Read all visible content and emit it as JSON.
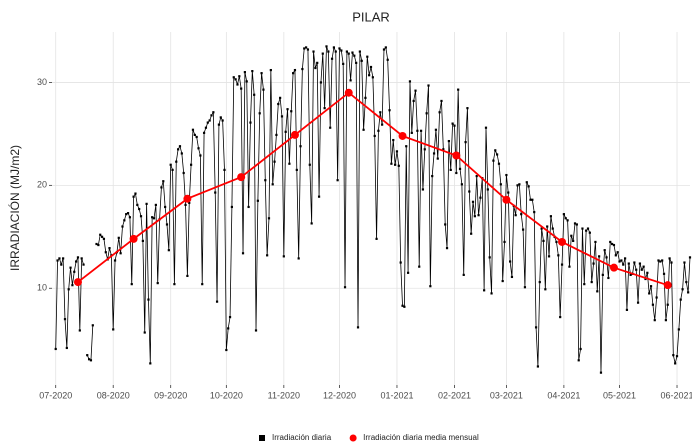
{
  "chart_data": {
    "type": "line",
    "title": "PILAR",
    "y_label": "IRRADIACIÓN (MJ/m2)",
    "xlim": [
      -2,
      342
    ],
    "ylim": [
      0.6,
      34.9
    ],
    "xticks": [
      {
        "value": 0,
        "label": "07-2020"
      },
      {
        "value": 31,
        "label": "08-2020"
      },
      {
        "value": 62,
        "label": "09-2020"
      },
      {
        "value": 92,
        "label": "10-2020"
      },
      {
        "value": 123,
        "label": "11-2020"
      },
      {
        "value": 153,
        "label": "12-2020"
      },
      {
        "value": 184,
        "label": "01-2021"
      },
      {
        "value": 215,
        "label": "02-2021"
      },
      {
        "value": 243,
        "label": "03-2021"
      },
      {
        "value": 274,
        "label": "04-2021"
      },
      {
        "value": 304,
        "label": "05-2021"
      },
      {
        "value": 335,
        "label": "06-2021"
      }
    ],
    "yticks": [
      10,
      20,
      30
    ],
    "grid": true,
    "legend": "bottom",
    "series": [
      {
        "name": "Irradiación diaria",
        "color": "#000000",
        "marker": "square",
        "x": [
          0,
          1,
          2,
          3,
          4,
          5,
          6,
          7,
          8,
          9,
          10,
          11,
          12,
          13,
          14,
          15,
          16,
          17,
          18,
          19,
          20,
          21,
          22,
          23,
          24,
          25,
          26,
          27,
          28,
          29,
          30,
          31,
          32,
          33,
          34,
          35,
          36,
          37,
          38,
          39,
          40,
          41,
          42,
          43,
          44,
          45,
          46,
          47,
          48,
          49,
          50,
          51,
          52,
          53,
          54,
          55,
          56,
          57,
          58,
          59,
          60,
          61,
          62,
          63,
          64,
          65,
          66,
          67,
          68,
          69,
          70,
          71,
          72,
          73,
          74,
          75,
          76,
          77,
          78,
          79,
          80,
          81,
          82,
          83,
          84,
          85,
          86,
          87,
          88,
          89,
          90,
          91,
          92,
          93,
          94,
          95,
          96,
          97,
          98,
          99,
          100,
          101,
          102,
          103,
          104,
          105,
          106,
          107,
          108,
          109,
          110,
          111,
          112,
          113,
          114,
          115,
          116,
          117,
          118,
          119,
          120,
          121,
          122,
          123,
          124,
          125,
          126,
          127,
          128,
          129,
          130,
          131,
          132,
          133,
          134,
          135,
          136,
          137,
          138,
          139,
          140,
          141,
          142,
          143,
          144,
          145,
          146,
          147,
          148,
          149,
          150,
          151,
          152,
          153,
          154,
          155,
          156,
          157,
          158,
          159,
          160,
          161,
          162,
          163,
          164,
          165,
          166,
          167,
          168,
          169,
          170,
          171,
          172,
          173,
          174,
          175,
          176,
          177,
          178,
          179,
          180,
          181,
          182,
          183,
          184,
          185,
          186,
          187,
          188,
          189,
          190,
          191,
          192,
          193,
          194,
          195,
          196,
          197,
          198,
          199,
          200,
          201,
          202,
          203,
          204,
          205,
          206,
          207,
          208,
          209,
          210,
          211,
          212,
          213,
          214,
          215,
          216,
          217,
          218,
          219,
          220,
          221,
          222,
          223,
          224,
          225,
          226,
          227,
          228,
          229,
          230,
          231,
          232,
          233,
          234,
          235,
          236,
          237,
          238,
          239,
          240,
          241,
          242,
          243,
          244,
          245,
          246,
          247,
          248,
          249,
          250,
          251,
          252,
          253,
          254,
          255,
          256,
          257,
          258,
          259,
          260,
          261,
          262,
          263,
          264,
          265,
          266,
          267,
          268,
          269,
          270,
          271,
          272,
          273,
          274,
          275,
          276,
          277,
          278,
          279,
          280,
          281,
          282,
          283,
          284,
          285,
          286,
          287,
          288,
          289,
          290,
          291,
          292,
          293,
          294,
          295,
          296,
          297,
          298,
          299,
          300,
          301,
          302,
          303,
          304,
          305,
          306,
          307,
          308,
          309,
          310,
          311,
          312,
          313,
          314,
          315,
          316,
          317,
          318,
          319,
          320,
          321,
          322,
          323,
          324,
          325,
          326,
          327,
          328,
          329,
          330,
          331,
          332,
          333,
          334,
          335,
          336,
          337,
          338,
          339,
          340,
          341,
          342
        ],
        "values": [
          4.1,
          12.7,
          12.9,
          12.3,
          12.9,
          7.0,
          4.2,
          9.9,
          12.0,
          10.3,
          11.6,
          12.6,
          13.0,
          5.9,
          12.9,
          12.3,
          null,
          3.5,
          3.1,
          3.0,
          6.4,
          null,
          14.3,
          14.2,
          15.2,
          15.0,
          14.8,
          13.5,
          12.8,
          13.9,
          13.2,
          6.0,
          12.7,
          13.5,
          14.9,
          13.4,
          16.0,
          16.6,
          17.2,
          17.3,
          16.9,
          10.4,
          18.9,
          19.2,
          18.1,
          17.7,
          17.0,
          14.6,
          5.7,
          18.2,
          8.9,
          2.7,
          16.9,
          16.8,
          18.1,
          10.5,
          16.7,
          19.8,
          20.4,
          17.9,
          16.2,
          13.7,
          22.0,
          21.5,
          10.4,
          22.3,
          23.5,
          23.8,
          23.1,
          21.2,
          18.1,
          11.2,
          18.3,
          22.0,
          25.4,
          24.9,
          24.7,
          23.6,
          22.9,
          10.4,
          25.1,
          25.6,
          26.1,
          26.3,
          26.8,
          27.1,
          19.3,
          8.7,
          25.9,
          26.6,
          26.3,
          21.5,
          4.0,
          6.1,
          7.2,
          17.9,
          30.5,
          30.3,
          29.8,
          30.6,
          29.4,
          13.4,
          31.0,
          30.1,
          17.9,
          26.1,
          31.1,
          28.8,
          5.9,
          18.5,
          27.0,
          30.9,
          29.3,
          20.5,
          13.2,
          16.8,
          31.2,
          20.1,
          22.3,
          24.9,
          27.9,
          28.5,
          26.7,
          13.1,
          25.2,
          27.4,
          22.1,
          27.2,
          30.9,
          31.2,
          21.5,
          12.9,
          23.8,
          31.3,
          33.3,
          33.4,
          33.2,
          22.0,
          16.3,
          33.0,
          31.4,
          31.9,
          18.9,
          30.0,
          32.8,
          27.5,
          33.5,
          33.0,
          25.6,
          32.3,
          33.4,
          33.0,
          20.5,
          33.3,
          33.1,
          31.8,
          10.1,
          33.0,
          32.8,
          30.2,
          32.9,
          32.6,
          31.9,
          6.2,
          33.0,
          32.1,
          25.4,
          28.5,
          32.5,
          30.7,
          31.5,
          30.5,
          24.8,
          14.8,
          25.3,
          27.1,
          25.9,
          33.2,
          33.4,
          32.2,
          27.3,
          22.1,
          24.4,
          22.0,
          23.3,
          21.9,
          12.5,
          8.3,
          8.2,
          23.8,
          11.5,
          30.1,
          25.1,
          28.2,
          29.2,
          25.3,
          12.1,
          25.3,
          19.6,
          23.5,
          27.0,
          29.7,
          10.2,
          20.9,
          23.1,
          25.4,
          22.6,
          27.1,
          28.2,
          23.5,
          16.2,
          13.9,
          24.3,
          21.5,
          26.0,
          25.8,
          21.2,
          29.3,
          21.6,
          20.1,
          11.3,
          24.2,
          27.5,
          19.4,
          15.3,
          18.4,
          17.0,
          20.9,
          17.1,
          18.8,
          20.7,
          9.8,
          25.6,
          19.6,
          13.0,
          9.5,
          22.4,
          23.4,
          23.0,
          22.1,
          20.1,
          10.7,
          14.5,
          21.0,
          19.3,
          12.6,
          11.1,
          18.0,
          17.1,
          20.0,
          20.1,
          17.2,
          15.7,
          10.1,
          20.3,
          19.9,
          18.6,
          18.6,
          17.4,
          6.2,
          2.4,
          10.6,
          15.8,
          14.6,
          9.9,
          16.0,
          13.1,
          17.0,
          15.8,
          15.0,
          14.5,
          13.2,
          7.2,
          12.3,
          17.2,
          16.8,
          16.6,
          12.1,
          15.1,
          14.6,
          16.3,
          16.2,
          3.0,
          4.1,
          15.8,
          10.4,
          15.6,
          15.8,
          15.4,
          10.6,
          12.4,
          14.5,
          9.7,
          13.1,
          1.8,
          11.3,
          13.7,
          13.0,
          11.0,
          14.5,
          14.3,
          14.2,
          13.2,
          13.5,
          12.6,
          12.7,
          12.3,
          12.9,
          7.9,
          12.4,
          11.3,
          11.4,
          12.5,
          11.8,
          8.6,
          12.4,
          11.8,
          12.1,
          10.9,
          11.5,
          9.5,
          10.2,
          8.4,
          6.9,
          9.1,
          12.7,
          12.6,
          12.7,
          11.4,
          6.9,
          8.4,
          12.9,
          12.5,
          3.5,
          2.7,
          3.4,
          6.0,
          8.9,
          9.9,
          12.5,
          10.6,
          9.6,
          13.0
        ]
      },
      {
        "name": "Irradiación diaria media mensual",
        "color": "#ff0000",
        "marker": "circle",
        "x": [
          12,
          42,
          71,
          100,
          129,
          158,
          187,
          216,
          243,
          273,
          301,
          330
        ],
        "values": [
          10.6,
          14.8,
          18.7,
          20.8,
          24.9,
          29.0,
          24.8,
          22.9,
          18.6,
          14.5,
          12.0,
          10.3
        ]
      }
    ]
  }
}
